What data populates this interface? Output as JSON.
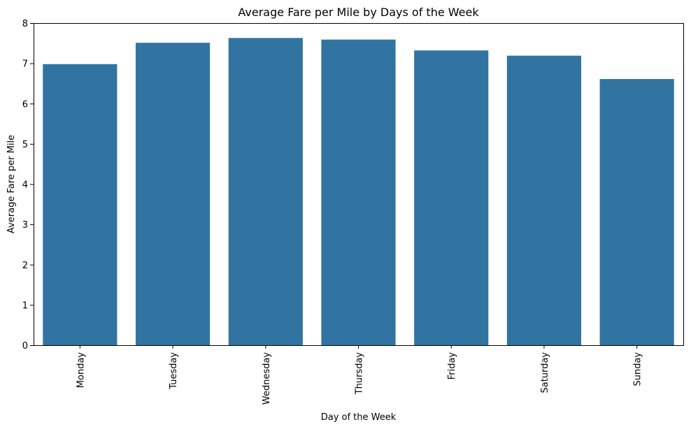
{
  "chart_data": {
    "type": "bar",
    "title": "Average Fare per Mile by Days of the Week",
    "xlabel": "Day of the Week",
    "ylabel": "Average Fare per Mile",
    "categories": [
      "Monday",
      "Tuesday",
      "Wednesday",
      "Thursday",
      "Friday",
      "Saturday",
      "Sunday"
    ],
    "values": [
      6.98,
      7.51,
      7.63,
      7.59,
      7.32,
      7.19,
      6.61
    ],
    "ylim": [
      0,
      8
    ],
    "yticks": [
      0,
      1,
      2,
      3,
      4,
      5,
      6,
      7,
      8
    ],
    "grid": false,
    "bar_color": "#3274a1"
  }
}
